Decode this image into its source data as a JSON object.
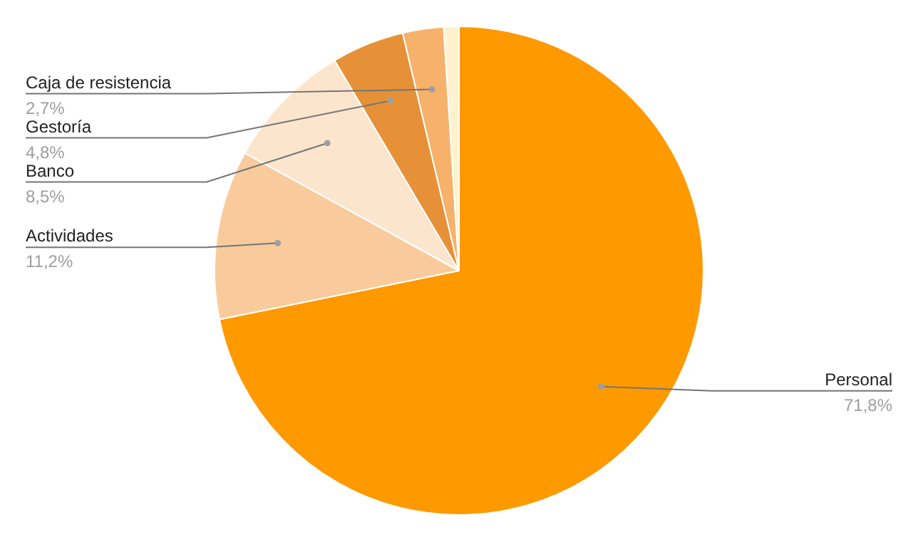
{
  "chart_data": {
    "type": "pie",
    "categories": [
      "Personal",
      "Actividades",
      "Banco",
      "Gestoría",
      "Caja de resistencia",
      null
    ],
    "values": [
      71.8,
      11.2,
      8.5,
      4.8,
      2.7,
      1.0
    ],
    "value_labels": [
      "71,8%",
      "11,2%",
      "8,5%",
      "4,8%",
      "2,7%",
      null
    ],
    "colors": [
      "#ff9900",
      "#f9cb9c",
      "#fce5cd",
      "#e69138",
      "#f6b26b",
      "#fff2cc"
    ],
    "legend": false
  }
}
